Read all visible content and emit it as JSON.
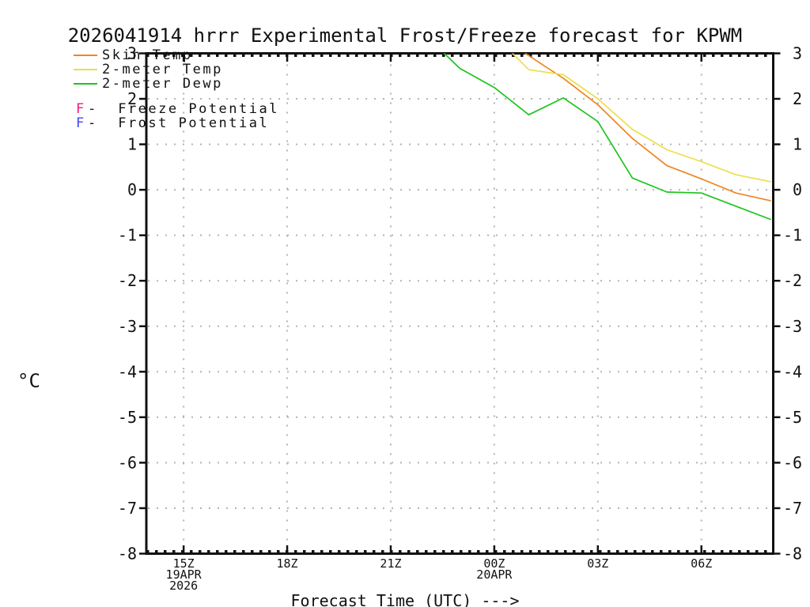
{
  "title": "2026041914 hrrr Experimental Frost/Freeze forecast for KPWM",
  "legend": {
    "series": [
      {
        "label": "Skin Temp",
        "color": "#ee8522"
      },
      {
        "label": "2-meter Temp",
        "color": "#ecdf49"
      },
      {
        "label": "2-meter Dewp",
        "color": "#1ec41e"
      }
    ],
    "potentials": [
      {
        "marker": "F",
        "label": "-  Freeze Potential",
        "color": "#f2187e"
      },
      {
        "marker": "F",
        "label": "-  Frost Potential",
        "color": "#4444ee"
      }
    ]
  },
  "axes": {
    "y_unit": "°C",
    "x_label": "Forecast Time (UTC) --->"
  },
  "chart_data": {
    "type": "line",
    "title": "2026041914 hrrr Experimental Frost/Freeze forecast for KPWM",
    "ylabel": "°C",
    "xlabel": "Forecast Time (UTC) --->",
    "grid": true,
    "legend_position": "top-left",
    "y_axis": {
      "range": [
        -8,
        3
      ],
      "ticks": [
        3,
        2,
        1,
        0,
        -1,
        -2,
        -3,
        -4,
        -5,
        -6,
        -7,
        -8
      ]
    },
    "x_axis": {
      "range_hours": [
        13.92,
        32.08
      ],
      "ticks": [
        {
          "hour": 15,
          "label": "15Z",
          "sublabels": [
            "19APR",
            "2026"
          ]
        },
        {
          "hour": 18,
          "label": "18Z",
          "sublabels": []
        },
        {
          "hour": 21,
          "label": "21Z",
          "sublabels": []
        },
        {
          "hour": 24,
          "label": "00Z",
          "sublabels": [
            "20APR"
          ]
        },
        {
          "hour": 27,
          "label": "03Z",
          "sublabels": []
        },
        {
          "hour": 30,
          "label": "06Z",
          "sublabels": []
        }
      ]
    },
    "series": [
      {
        "name": "Skin Temp",
        "color": "#ee8522",
        "points": [
          [
            24,
            3.42
          ],
          [
            25,
            2.95
          ],
          [
            26,
            2.45
          ],
          [
            27,
            1.87
          ],
          [
            28,
            1.13
          ],
          [
            29,
            0.53
          ],
          [
            30,
            0.24
          ],
          [
            31,
            -0.07
          ],
          [
            32,
            -0.24
          ]
        ]
      },
      {
        "name": "2-meter Temp",
        "color": "#ecdf49",
        "points": [
          [
            24,
            3.4
          ],
          [
            25,
            2.64
          ],
          [
            26,
            2.53
          ],
          [
            27,
            2.0
          ],
          [
            28,
            1.33
          ],
          [
            29,
            0.88
          ],
          [
            30,
            0.62
          ],
          [
            31,
            0.33
          ],
          [
            32,
            0.18
          ]
        ]
      },
      {
        "name": "2-meter Dewp",
        "color": "#1ec41e",
        "points": [
          [
            22,
            3.4
          ],
          [
            23,
            2.67
          ],
          [
            24,
            2.25
          ],
          [
            25,
            1.65
          ],
          [
            26,
            2.02
          ],
          [
            27,
            1.5
          ],
          [
            28,
            0.26
          ],
          [
            29,
            -0.05
          ],
          [
            30,
            -0.07
          ],
          [
            31,
            -0.36
          ],
          [
            32,
            -0.65
          ]
        ]
      }
    ]
  }
}
